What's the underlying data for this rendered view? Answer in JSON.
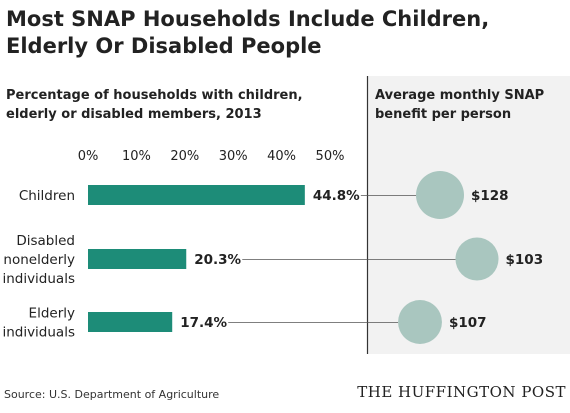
{
  "title_line1": "Most SNAP Households Include Children,",
  "title_line2": "Elderly Or Disabled People",
  "source": "Source: U.S. Department of Agriculture",
  "brand": "THE HUFFINGTON POST",
  "colors": {
    "bar": "#1d8c78",
    "bubble": "#a9c6bf",
    "divider": "#333333",
    "right_panel_bg": "#f2f2f2"
  },
  "chart_data": [
    {
      "type": "bar",
      "orientation": "horizontal",
      "title": "Percentage of households with children, elderly or disabled members, 2013",
      "categories": [
        [
          "Children"
        ],
        [
          "Disabled",
          "nonelderly",
          "individuals"
        ],
        [
          "Elderly",
          "individuals"
        ]
      ],
      "values": [
        44.8,
        20.3,
        17.4
      ],
      "value_labels": [
        "44.8%",
        "20.3%",
        "17.4%"
      ],
      "xlim": [
        0,
        50
      ],
      "x_ticks": [
        "0%",
        "10%",
        "20%",
        "30%",
        "40%",
        "50%"
      ],
      "grid": false
    },
    {
      "type": "scatter",
      "title": "Average monthly SNAP benefit per person",
      "values": [
        128,
        103,
        107
      ],
      "value_labels": [
        "$128",
        "$103",
        "$107"
      ]
    }
  ]
}
